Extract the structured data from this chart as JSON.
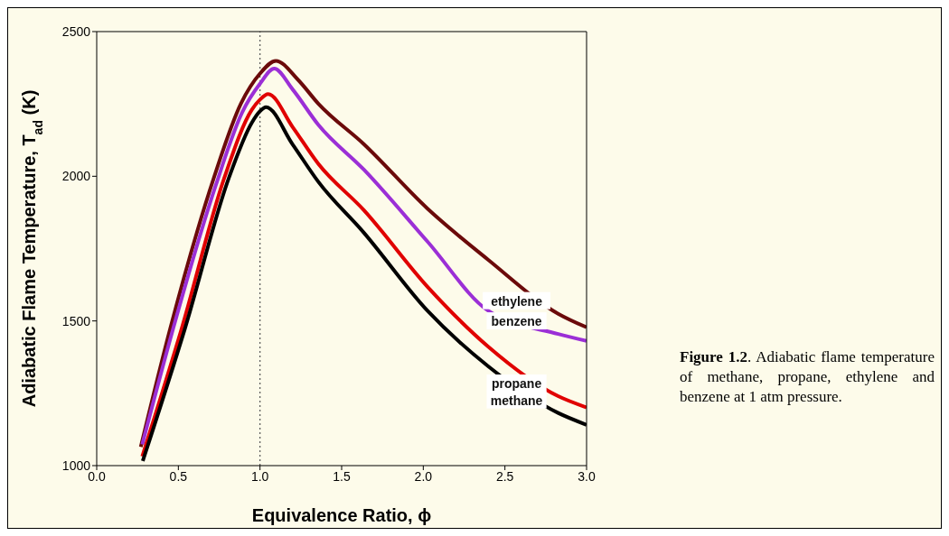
{
  "chart_data": {
    "type": "line",
    "xlabel": "Equivalence Ratio, ϕ",
    "ylabel": "Adiabatic Flame Temperature, T$_{ad}$ (K)",
    "xlim": [
      0,
      3
    ],
    "xticks": [
      {
        "value": 0,
        "label": "0.0"
      },
      {
        "value": 0.5,
        "label": "0.5"
      },
      {
        "value": 1,
        "label": "1.0"
      },
      {
        "value": 1.5,
        "label": "1.5"
      },
      {
        "value": 2,
        "label": "2.0"
      },
      {
        "value": 2.5,
        "label": "2.5"
      },
      {
        "value": 3,
        "label": "3.0"
      }
    ],
    "ylim": [
      1000,
      2500
    ],
    "yticks": [
      1000,
      1500,
      2000,
      2500
    ],
    "marker": "none",
    "line_style": "solid",
    "ref_lines": [
      {
        "axis": "x",
        "value": 1,
        "color": "#555555",
        "line_style": "dotted"
      }
    ],
    "annotations": [
      "Figure 1.2. Adiabatic flame temperature of methane, propane, ethylene and benzene at 1 atm pressure."
    ],
    "series": [
      {
        "name": "ethylene",
        "color": "#6b0a0a",
        "x": [
          0.27,
          0.45,
          0.716,
          0.883,
          1.0,
          1.097,
          1.232,
          1.357,
          1.636,
          2.026,
          2.398,
          2.826,
          3.0
        ],
        "values": [
          1065,
          1473,
          1992,
          2251,
          2355,
          2399,
          2334,
          2251,
          2111,
          1888,
          1711,
          1525,
          1478
        ]
      },
      {
        "name": "benzene",
        "color": "#9b2fd6",
        "x": [
          0.279,
          0.468,
          0.73,
          0.89,
          1.0,
          1.087,
          1.2,
          1.357,
          1.636,
          2.026,
          2.398,
          2.826,
          3.0
        ],
        "values": [
          1073,
          1473,
          1970,
          2220,
          2320,
          2372,
          2300,
          2178,
          2023,
          1774,
          1535,
          1455,
          1431
        ]
      },
      {
        "name": "propane",
        "color": "#e00000",
        "x": [
          0.279,
          0.52,
          0.78,
          0.95,
          1.0,
          1.05,
          1.2,
          1.357,
          1.636,
          2.026,
          2.398,
          2.826,
          3.0
        ],
        "values": [
          1032,
          1473,
          1992,
          2230,
          2265,
          2284,
          2170,
          2043,
          1883,
          1618,
          1411,
          1240,
          1201
        ]
      },
      {
        "name": "methane",
        "color": "#000000",
        "x": [
          0.282,
          0.54,
          0.808,
          0.95,
          1.0,
          1.037,
          1.2,
          1.357,
          1.636,
          2.026,
          2.398,
          2.826,
          3.0
        ],
        "values": [
          1016,
          1473,
          1992,
          2185,
          2225,
          2239,
          2110,
          1981,
          1805,
          1535,
          1343,
          1182,
          1141
        ]
      }
    ]
  }
}
